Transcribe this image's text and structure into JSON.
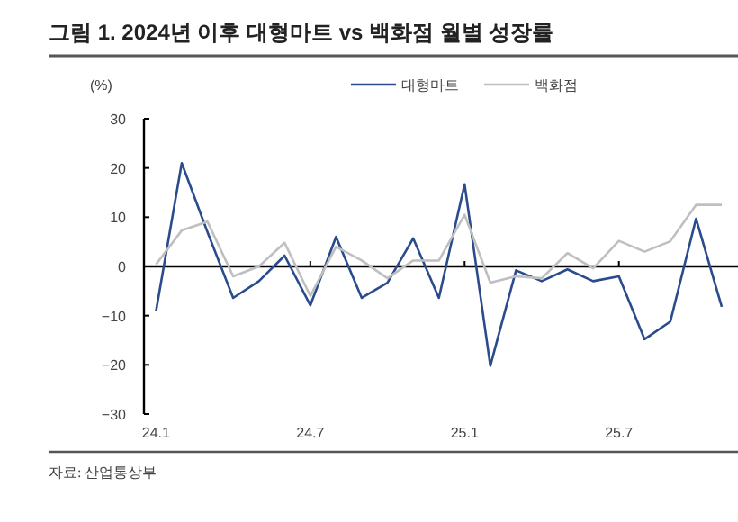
{
  "chart_data": {
    "type": "line",
    "title": "그림 1. 2024년 이후 대형마트 vs 백화점 월별 성장률",
    "ylabel": "(%)",
    "categories": [
      "24.1",
      null,
      null,
      null,
      null,
      null,
      "24.7",
      null,
      null,
      null,
      null,
      null,
      "25.1",
      null,
      null,
      null,
      null,
      null,
      "25.7",
      null,
      null,
      null,
      null
    ],
    "series": [
      {
        "name": "대형마트",
        "color": "#2b4c8c",
        "values": [
          -9.1,
          21,
          7,
          -6.4,
          -3,
          2.2,
          -7.9,
          6,
          -6.4,
          -3.3,
          5.7,
          -6.4,
          16.7,
          -20.2,
          -0.8,
          -3,
          -0.6,
          -3,
          -2,
          -14.8,
          -11.2,
          9.7,
          -8.2
        ]
      },
      {
        "name": "백화점",
        "color": "#bfbfbf",
        "values": [
          0.4,
          7.3,
          9.1,
          -2,
          0,
          4.8,
          -6,
          4,
          1.2,
          -2.4,
          1.2,
          1.2,
          10.5,
          -3.3,
          -2,
          -2.4,
          2.7,
          -0.4,
          5.2,
          3,
          5.1,
          12.5,
          12.5
        ]
      }
    ],
    "ylim": [
      -30,
      30
    ],
    "yticks": [
      -30,
      -20,
      -10,
      0,
      10,
      20,
      30
    ],
    "legend": "top",
    "marker": "none",
    "line_style": "solid",
    "annotations": [
      "자료: 산업통상부"
    ]
  }
}
